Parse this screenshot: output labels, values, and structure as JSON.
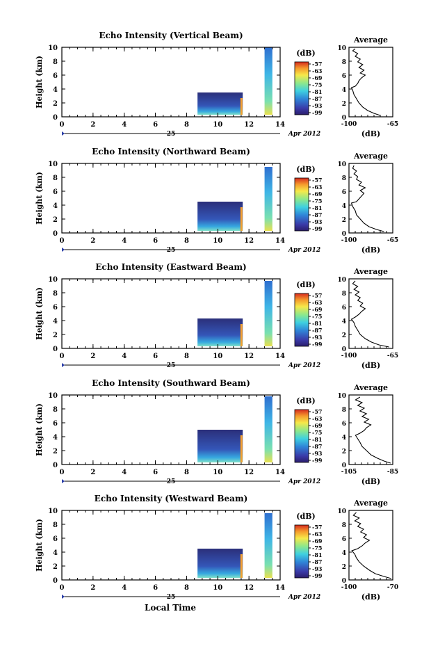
{
  "figure": {
    "date_label": "25",
    "month_label": "Apr 2012",
    "xlabel": "Local Time",
    "colorbar_unit": "(dB)",
    "avg_title": "Average",
    "avg_xunit": "(dB)"
  },
  "chart_data": [
    {
      "type": "heatmap",
      "title": "Echo Intensity (Vertical Beam)",
      "ylabel": "Height (km)",
      "xlabel": "Local Time",
      "xlim": [
        0,
        14
      ],
      "ylim": [
        0,
        10
      ],
      "x_ticks": [
        "0",
        "2",
        "4",
        "6",
        "8",
        "10",
        "12",
        "14"
      ],
      "y_ticks": [
        "0",
        "2",
        "4",
        "6",
        "8",
        "10"
      ],
      "colorbar": {
        "unit": "(dB)",
        "ticks": [
          "-57",
          "-63",
          "-69",
          "-75",
          "-81",
          "-87",
          "-93",
          "-99"
        ],
        "range": [
          -99,
          -57
        ]
      },
      "data_blocks": [
        {
          "t": [
            8.7,
            11.6
          ],
          "h": [
            0.3,
            3.5
          ],
          "level": "low"
        },
        {
          "t": [
            13.0,
            13.5
          ],
          "h": [
            0.3,
            10.0
          ],
          "level": "mid"
        }
      ],
      "average": {
        "title": "Average",
        "xunit": "(dB)",
        "xlim": [
          -100,
          -65
        ],
        "x_ticks": [
          "-100",
          "-65"
        ],
        "y_ticks": [
          "0",
          "2",
          "4",
          "6",
          "8",
          "10"
        ],
        "profile": [
          [
            -75,
            0.2
          ],
          [
            -80,
            0.5
          ],
          [
            -85,
            0.9
          ],
          [
            -89,
            1.4
          ],
          [
            -92,
            2.0
          ],
          [
            -94,
            2.6
          ],
          [
            -96,
            3.2
          ],
          [
            -97,
            3.8
          ],
          [
            -98,
            4.2
          ],
          [
            -95,
            4.4
          ],
          [
            -93,
            4.8
          ],
          [
            -92,
            5.2
          ],
          [
            -90,
            5.6
          ],
          [
            -87,
            6.0
          ],
          [
            -91,
            6.3
          ],
          [
            -88,
            6.7
          ],
          [
            -92,
            7.1
          ],
          [
            -89,
            7.5
          ],
          [
            -93,
            7.9
          ],
          [
            -91,
            8.3
          ],
          [
            -95,
            8.7
          ],
          [
            -93,
            9.1
          ],
          [
            -97,
            9.5
          ],
          [
            -95,
            9.8
          ]
        ]
      }
    },
    {
      "type": "heatmap",
      "title": "Echo Intensity (Northward Beam)",
      "ylabel": "Height (km)",
      "xlabel": "Local Time",
      "xlim": [
        0,
        14
      ],
      "ylim": [
        0,
        10
      ],
      "x_ticks": [
        "0",
        "2",
        "4",
        "6",
        "8",
        "10",
        "12",
        "14"
      ],
      "y_ticks": [
        "0",
        "2",
        "4",
        "6",
        "8",
        "10"
      ],
      "colorbar": {
        "unit": "(dB)",
        "ticks": [
          "-57",
          "-63",
          "-69",
          "-75",
          "-81",
          "-87",
          "-93",
          "-99"
        ],
        "range": [
          -99,
          -57
        ]
      },
      "data_blocks": [
        {
          "t": [
            8.7,
            11.6
          ],
          "h": [
            0.3,
            4.5
          ],
          "level": "low"
        },
        {
          "t": [
            13.0,
            13.5
          ],
          "h": [
            0.3,
            9.5
          ],
          "level": "mid"
        }
      ],
      "average": {
        "title": "Average",
        "xunit": "(dB)",
        "xlim": [
          -100,
          -65
        ],
        "x_ticks": [
          "-100",
          "-65"
        ],
        "y_ticks": [
          "0",
          "2",
          "4",
          "6",
          "8",
          "10"
        ],
        "profile": [
          [
            -72,
            0.2
          ],
          [
            -78,
            0.5
          ],
          [
            -84,
            0.9
          ],
          [
            -88,
            1.4
          ],
          [
            -91,
            2.0
          ],
          [
            -94,
            2.6
          ],
          [
            -95,
            3.2
          ],
          [
            -97,
            3.8
          ],
          [
            -98,
            4.3
          ],
          [
            -94,
            4.5
          ],
          [
            -92,
            4.9
          ],
          [
            -90,
            5.3
          ],
          [
            -88,
            5.7
          ],
          [
            -91,
            6.1
          ],
          [
            -87,
            6.5
          ],
          [
            -92,
            6.9
          ],
          [
            -90,
            7.3
          ],
          [
            -94,
            7.7
          ],
          [
            -93,
            8.1
          ],
          [
            -96,
            8.5
          ],
          [
            -94,
            8.9
          ],
          [
            -97,
            9.3
          ],
          [
            -96,
            9.7
          ]
        ]
      }
    },
    {
      "type": "heatmap",
      "title": "Echo Intensity (Eastward Beam)",
      "ylabel": "Height (km)",
      "xlabel": "Local Time",
      "xlim": [
        0,
        14
      ],
      "ylim": [
        0,
        10
      ],
      "x_ticks": [
        "0",
        "2",
        "4",
        "6",
        "8",
        "10",
        "12",
        "14"
      ],
      "y_ticks": [
        "0",
        "2",
        "4",
        "6",
        "8",
        "10"
      ],
      "colorbar": {
        "unit": "(dB)",
        "ticks": [
          "-57",
          "-63",
          "-69",
          "-75",
          "-81",
          "-87",
          "-93",
          "-99"
        ],
        "range": [
          -99,
          -57
        ]
      },
      "data_blocks": [
        {
          "t": [
            8.7,
            11.6
          ],
          "h": [
            0.3,
            4.3
          ],
          "level": "low"
        },
        {
          "t": [
            13.0,
            13.5
          ],
          "h": [
            0.3,
            9.7
          ],
          "level": "mid"
        }
      ],
      "average": {
        "title": "Average",
        "xunit": "(dB)",
        "xlim": [
          -100,
          -65
        ],
        "x_ticks": [
          "-100",
          "-65"
        ],
        "y_ticks": [
          "0",
          "2",
          "4",
          "6",
          "8",
          "10"
        ],
        "profile": [
          [
            -68,
            0.2
          ],
          [
            -76,
            0.5
          ],
          [
            -82,
            0.9
          ],
          [
            -87,
            1.4
          ],
          [
            -91,
            2.0
          ],
          [
            -93,
            2.6
          ],
          [
            -95,
            3.2
          ],
          [
            -96,
            3.7
          ],
          [
            -98,
            4.2
          ],
          [
            -95,
            4.5
          ],
          [
            -92,
            4.9
          ],
          [
            -90,
            5.3
          ],
          [
            -87,
            5.7
          ],
          [
            -91,
            6.1
          ],
          [
            -89,
            6.5
          ],
          [
            -93,
            6.9
          ],
          [
            -91,
            7.3
          ],
          [
            -95,
            7.7
          ],
          [
            -92,
            8.1
          ],
          [
            -96,
            8.5
          ],
          [
            -93,
            8.9
          ],
          [
            -97,
            9.3
          ],
          [
            -95,
            9.7
          ]
        ]
      }
    },
    {
      "type": "heatmap",
      "title": "Echo Intensity (Southward Beam)",
      "ylabel": "Height (km)",
      "xlabel": "Local Time",
      "xlim": [
        0,
        14
      ],
      "ylim": [
        0,
        10
      ],
      "x_ticks": [
        "0",
        "2",
        "4",
        "6",
        "8",
        "10",
        "12",
        "14"
      ],
      "y_ticks": [
        "0",
        "2",
        "4",
        "6",
        "8",
        "10"
      ],
      "colorbar": {
        "unit": "(dB)",
        "ticks": [
          "-57",
          "-63",
          "-69",
          "-75",
          "-81",
          "-87",
          "-93",
          "-99"
        ],
        "range": [
          -99,
          -57
        ]
      },
      "data_blocks": [
        {
          "t": [
            8.7,
            11.6
          ],
          "h": [
            0.3,
            5.0
          ],
          "level": "low"
        },
        {
          "t": [
            13.0,
            13.5
          ],
          "h": [
            0.3,
            9.8
          ],
          "level": "mid"
        }
      ],
      "average": {
        "title": "Average",
        "xunit": "(dB)",
        "xlim": [
          -105,
          -85
        ],
        "x_ticks": [
          "-105",
          "-85"
        ],
        "y_ticks": [
          "0",
          "2",
          "4",
          "6",
          "8",
          "10"
        ],
        "profile": [
          [
            -86,
            0.2
          ],
          [
            -89,
            0.5
          ],
          [
            -92,
            0.9
          ],
          [
            -95,
            1.4
          ],
          [
            -97,
            2.0
          ],
          [
            -99,
            2.6
          ],
          [
            -100,
            3.2
          ],
          [
            -101,
            3.7
          ],
          [
            -102,
            4.2
          ],
          [
            -100,
            4.5
          ],
          [
            -98,
            4.9
          ],
          [
            -97,
            5.3
          ],
          [
            -95,
            5.7
          ],
          [
            -98,
            6.1
          ],
          [
            -96,
            6.5
          ],
          [
            -99,
            6.9
          ],
          [
            -97,
            7.3
          ],
          [
            -100,
            7.7
          ],
          [
            -98,
            8.1
          ],
          [
            -101,
            8.5
          ],
          [
            -99,
            8.9
          ],
          [
            -102,
            9.3
          ],
          [
            -100,
            9.7
          ]
        ]
      }
    },
    {
      "type": "heatmap",
      "title": "Echo Intensity (Westward Beam)",
      "ylabel": "Height (km)",
      "xlabel": "Local Time",
      "xlim": [
        0,
        14
      ],
      "ylim": [
        0,
        10
      ],
      "x_ticks": [
        "0",
        "2",
        "4",
        "6",
        "8",
        "10",
        "12",
        "14"
      ],
      "y_ticks": [
        "0",
        "2",
        "4",
        "6",
        "8",
        "10"
      ],
      "colorbar": {
        "unit": "(dB)",
        "ticks": [
          "-57",
          "-63",
          "-69",
          "-75",
          "-81",
          "-87",
          "-93",
          "-99"
        ],
        "range": [
          -99,
          -57
        ]
      },
      "data_blocks": [
        {
          "t": [
            8.7,
            11.6
          ],
          "h": [
            0.3,
            4.5
          ],
          "level": "low"
        },
        {
          "t": [
            13.0,
            13.5
          ],
          "h": [
            0.3,
            9.6
          ],
          "level": "mid"
        }
      ],
      "average": {
        "title": "Average",
        "xunit": "(dB)",
        "xlim": [
          -100,
          -70
        ],
        "x_ticks": [
          "-100",
          "-70"
        ],
        "y_ticks": [
          "0",
          "2",
          "4",
          "6",
          "8",
          "10"
        ],
        "profile": [
          [
            -71,
            0.2
          ],
          [
            -76,
            0.5
          ],
          [
            -82,
            0.9
          ],
          [
            -86,
            1.4
          ],
          [
            -90,
            2.0
          ],
          [
            -93,
            2.6
          ],
          [
            -95,
            3.2
          ],
          [
            -96,
            3.7
          ],
          [
            -98,
            4.2
          ],
          [
            -94,
            4.5
          ],
          [
            -91,
            4.9
          ],
          [
            -89,
            5.3
          ],
          [
            -86,
            5.7
          ],
          [
            -90,
            6.1
          ],
          [
            -88,
            6.5
          ],
          [
            -92,
            6.9
          ],
          [
            -90,
            7.3
          ],
          [
            -94,
            7.7
          ],
          [
            -92,
            8.1
          ],
          [
            -96,
            8.5
          ],
          [
            -93,
            8.9
          ],
          [
            -97,
            9.3
          ],
          [
            -95,
            9.7
          ]
        ]
      }
    }
  ]
}
